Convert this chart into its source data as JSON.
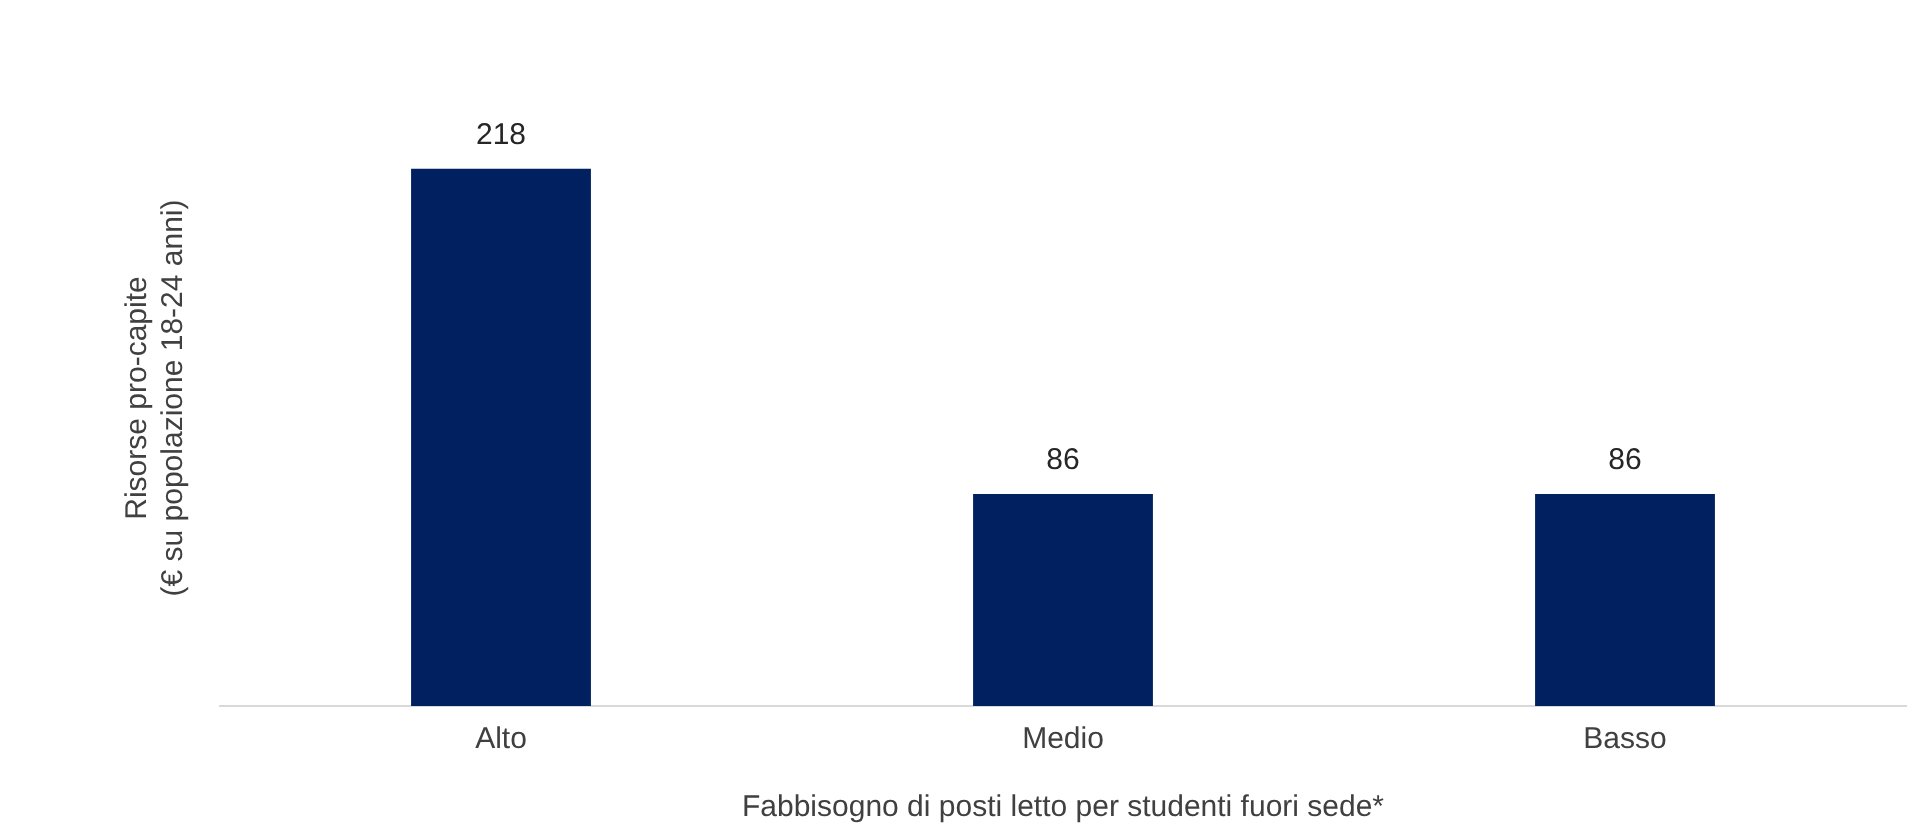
{
  "chart_data": {
    "type": "bar",
    "categories": [
      "Alto",
      "Medio",
      "Basso"
    ],
    "values": [
      218,
      86,
      86
    ],
    "color": "#002060",
    "xlabel": "Fabbisogno di posti letto per studenti fuori sede*",
    "ylabel": "Risorse pro-capite\n(€ su popolazione 18-24 anni)",
    "tick_labels": "x",
    "data_labels": true,
    "grid": false,
    "legend": false
  }
}
